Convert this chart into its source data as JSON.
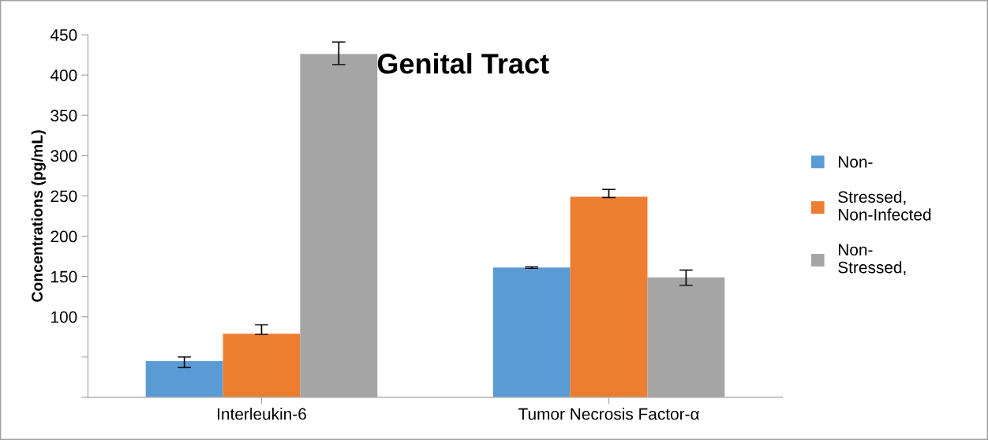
{
  "chart_data": {
    "type": "bar",
    "title": "Genital Tract",
    "ylabel": "Concentrations (pg/mL)",
    "categories": [
      "Interleukin-6",
      "Tumor Necrosis Factor-α"
    ],
    "series": [
      {
        "name": "Non-",
        "color": "#5b9bd5",
        "values": [
          45,
          161
        ],
        "errors": [
          [
            37,
            50
          ],
          1
        ]
      },
      {
        "name": "Stressed,\nNon-Infected",
        "color": "#ed7d31",
        "values": [
          79,
          249
        ],
        "errors": [
          [
            78,
            90
          ],
          [
            248,
            258
          ]
        ]
      },
      {
        "name": "Non-\nStressed,",
        "color": "#a5a5a5",
        "values": [
          426,
          149
        ],
        "errors": [
          [
            413,
            441
          ],
          [
            139,
            158
          ]
        ]
      }
    ],
    "ylim": [
      0,
      450
    ],
    "yticks": [
      {
        "value": 0,
        "label": null
      },
      {
        "value": 50,
        "label": null
      },
      100,
      150,
      200,
      250,
      300,
      350,
      400,
      450
    ],
    "grid": false,
    "legend": "right"
  }
}
